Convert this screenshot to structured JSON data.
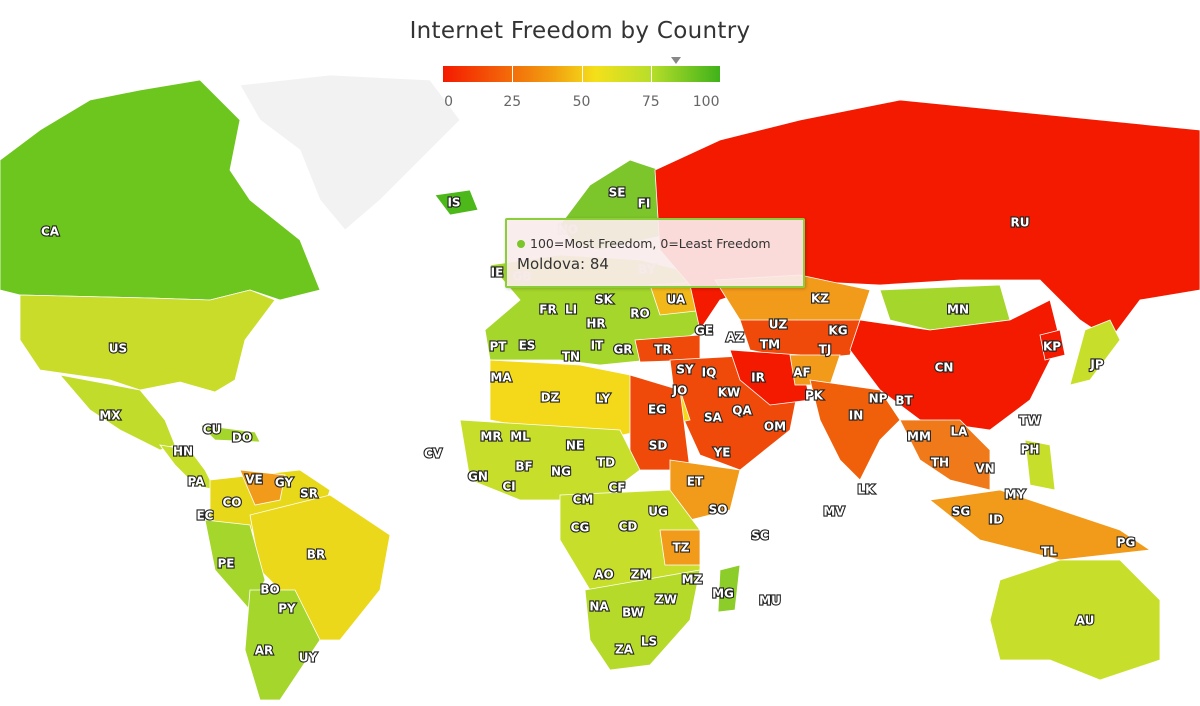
{
  "title": "Internet Freedom by Country",
  "legend": {
    "ticks": [
      "0",
      "25",
      "50",
      "75",
      "100"
    ],
    "min": 0,
    "max": 100,
    "hover_value": 84,
    "colors": [
      "#f41a00",
      "#f2a010",
      "#f4e01a",
      "#b8de2a",
      "#3fb21a"
    ]
  },
  "tooltip": {
    "series": "100=Most Freedom, 0=Least Freedom",
    "point": "Moldova: 84",
    "color": "#7cc52a"
  },
  "countries": [
    {
      "code": "CA",
      "color": "#6cc61e"
    },
    {
      "code": "US",
      "color": "#c9dc2a"
    },
    {
      "code": "MX",
      "color": "#c2dc2c"
    },
    {
      "code": "CU",
      "color": "#f29a1a"
    },
    {
      "code": "DO",
      "color": "#a5d62c"
    },
    {
      "code": "HN",
      "color": "#c7df2a"
    },
    {
      "code": "PA",
      "color": "#b5da2a"
    },
    {
      "code": "VE",
      "color": "#f29a1a"
    },
    {
      "code": "GY",
      "color": "#8ccd2a"
    },
    {
      "code": "SR",
      "color": "#6cc61e"
    },
    {
      "code": "CO",
      "color": "#e8d81a"
    },
    {
      "code": "EC",
      "color": "#c7df2a"
    },
    {
      "code": "PE",
      "color": "#a5d62c"
    },
    {
      "code": "BR",
      "color": "#ecd81a"
    },
    {
      "code": "BO",
      "color": "#a5d62c"
    },
    {
      "code": "PY",
      "color": "#b5da2a"
    },
    {
      "code": "AR",
      "color": "#a5d62c"
    },
    {
      "code": "UY",
      "color": "#8ccd2a"
    },
    {
      "code": "IS",
      "color": "#4cb81a"
    },
    {
      "code": "SE",
      "color": "#7cc52a"
    },
    {
      "code": "FI",
      "color": "#6cc61e"
    },
    {
      "code": "NO",
      "color": "#6cc61e"
    },
    {
      "code": "IE",
      "color": "#7cc52a"
    },
    {
      "code": "GB",
      "color": "#7cc52a"
    },
    {
      "code": "FR",
      "color": "#a5d62c"
    },
    {
      "code": "LI",
      "color": "#8ccd2a"
    },
    {
      "code": "SK",
      "color": "#8ccd2a"
    },
    {
      "code": "HR",
      "color": "#8ccd2a"
    },
    {
      "code": "RO",
      "color": "#8ccd2a"
    },
    {
      "code": "UA",
      "color": "#f2b81a"
    },
    {
      "code": "BY",
      "color": "#f4a01a"
    },
    {
      "code": "PT",
      "color": "#8ccd2a"
    },
    {
      "code": "ES",
      "color": "#a5d62c"
    },
    {
      "code": "IT",
      "color": "#a5d62c"
    },
    {
      "code": "GR",
      "color": "#a5d62c"
    },
    {
      "code": "TN",
      "color": "#c7df2a"
    },
    {
      "code": "TR",
      "color": "#f04a0a"
    },
    {
      "code": "GE",
      "color": "#c7df2a"
    },
    {
      "code": "AZ",
      "color": "#f29a1a"
    },
    {
      "code": "UZ",
      "color": "#f04a0a"
    },
    {
      "code": "KZ",
      "color": "#f29a1a"
    },
    {
      "code": "KG",
      "color": "#e8b81a"
    },
    {
      "code": "TM",
      "color": "#f41a00"
    },
    {
      "code": "TJ",
      "color": "#f07a1a"
    },
    {
      "code": "MN",
      "color": "#a5d62c"
    },
    {
      "code": "CN",
      "color": "#f41a00"
    },
    {
      "code": "KP",
      "color": "#f41a00"
    },
    {
      "code": "JP",
      "color": "#c7df2a"
    },
    {
      "code": "SY",
      "color": "#f41a00"
    },
    {
      "code": "IQ",
      "color": "#f04a0a"
    },
    {
      "code": "IR",
      "color": "#f41a00"
    },
    {
      "code": "AF",
      "color": "#f29a1a"
    },
    {
      "code": "PK",
      "color": "#f04a0a"
    },
    {
      "code": "IN",
      "color": "#f0600a"
    },
    {
      "code": "NP",
      "color": "#f2b81a"
    },
    {
      "code": "BT",
      "color": "#f2b81a"
    },
    {
      "code": "JO",
      "color": "#f29a1a"
    },
    {
      "code": "KW",
      "color": "#f07a1a"
    },
    {
      "code": "MA",
      "color": "#e8d81a"
    },
    {
      "code": "DZ",
      "color": "#f4d81a"
    },
    {
      "code": "LY",
      "color": "#f29a1a"
    },
    {
      "code": "EG",
      "color": "#f04a0a"
    },
    {
      "code": "SA",
      "color": "#f04a0a"
    },
    {
      "code": "QA",
      "color": "#f07a1a"
    },
    {
      "code": "OM",
      "color": "#f07a1a"
    },
    {
      "code": "YE",
      "color": "#f04a0a"
    },
    {
      "code": "SD",
      "color": "#f04a0a"
    },
    {
      "code": "MM",
      "color": "#f07a1a"
    },
    {
      "code": "LA",
      "color": "#f29a1a"
    },
    {
      "code": "TH",
      "color": "#f29a1a"
    },
    {
      "code": "VN",
      "color": "#f2a01a"
    },
    {
      "code": "TW",
      "color": "#8ccd2a"
    },
    {
      "code": "PH",
      "color": "#c7df2a"
    },
    {
      "code": "MY",
      "color": "#f2b81a"
    },
    {
      "code": "SG",
      "color": "#f29a1a"
    },
    {
      "code": "ID",
      "color": "#f29a1a"
    },
    {
      "code": "TL",
      "color": "#c7df2a"
    },
    {
      "code": "PG",
      "color": "#f29a1a"
    },
    {
      "code": "AU",
      "color": "#c7df2a"
    },
    {
      "code": "LK",
      "color": "#f29a1a"
    },
    {
      "code": "MV",
      "color": "#f29a1a"
    },
    {
      "code": "CV",
      "color": "#8ccd2a"
    },
    {
      "code": "MR",
      "color": "#c7df2a"
    },
    {
      "code": "ML",
      "color": "#c7df2a"
    },
    {
      "code": "NE",
      "color": "#c7df2a"
    },
    {
      "code": "TD",
      "color": "#e8d81a"
    },
    {
      "code": "NG",
      "color": "#c7df2a"
    },
    {
      "code": "BF",
      "color": "#a5d62c"
    },
    {
      "code": "GN",
      "color": "#c7df2a"
    },
    {
      "code": "CI",
      "color": "#c7df2a"
    },
    {
      "code": "CM",
      "color": "#c7df2a"
    },
    {
      "code": "CF",
      "color": "#e8d81a"
    },
    {
      "code": "ET",
      "color": "#f29a1a"
    },
    {
      "code": "SO",
      "color": "#e8d81a"
    },
    {
      "code": "UG",
      "color": "#c7df2a"
    },
    {
      "code": "CG",
      "color": "#c7df2a"
    },
    {
      "code": "CD",
      "color": "#c7df2a"
    },
    {
      "code": "SC",
      "color": "#a5d62c"
    },
    {
      "code": "TZ",
      "color": "#f29a1a"
    },
    {
      "code": "AO",
      "color": "#c7df2a"
    },
    {
      "code": "ZM",
      "color": "#c7df2a"
    },
    {
      "code": "MZ",
      "color": "#c7df2a"
    },
    {
      "code": "MG",
      "color": "#8ccd2a"
    },
    {
      "code": "MU",
      "color": "#a5d62c"
    },
    {
      "code": "ZW",
      "color": "#c7df2a"
    },
    {
      "code": "NA",
      "color": "#a5d62c"
    },
    {
      "code": "BW",
      "color": "#a5d62c"
    },
    {
      "code": "ZA",
      "color": "#b5da2a"
    },
    {
      "code": "LS",
      "color": "#a5d62c"
    },
    {
      "code": "RU",
      "color": "#f41a00"
    }
  ]
}
